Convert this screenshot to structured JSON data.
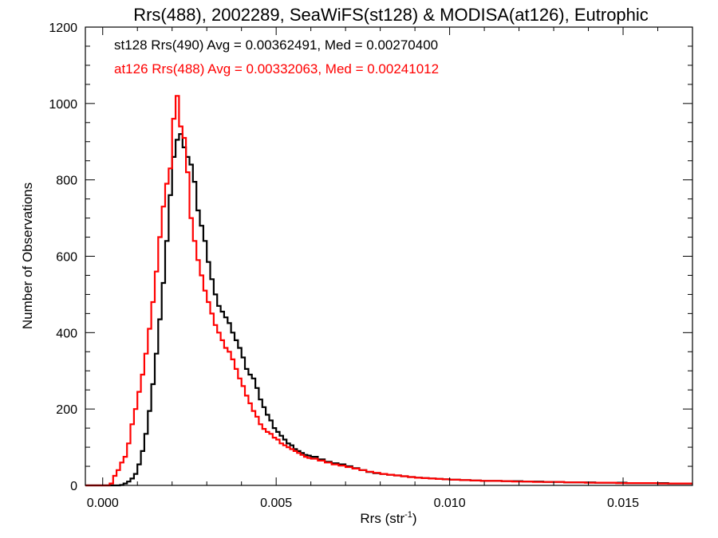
{
  "chart_data": {
    "type": "line",
    "step": true,
    "title": "Rrs(488), 2002289, SeaWiFS(st128) & MODISA(at126), Eutrophic",
    "xlabel": "Rrs (str",
    "xlabel_sup": "-1",
    "xlabel_suffix": ")",
    "ylabel": "Number of Observations",
    "xlim": [
      -0.0005,
      0.017
    ],
    "ylim": [
      0,
      1200
    ],
    "xticks": [
      0.0,
      0.005,
      0.01,
      0.015
    ],
    "xtick_labels": [
      "0.000",
      "0.005",
      "0.010",
      "0.015"
    ],
    "yticks": [
      0,
      200,
      400,
      600,
      800,
      1000,
      1200
    ],
    "ytick_labels": [
      "0",
      "200",
      "400",
      "600",
      "800",
      "1000",
      "1200"
    ],
    "grid": false,
    "legend_position": "top-left",
    "series": [
      {
        "name": "st128 Rrs(490) Avg = 0.00362491, Med = 0.00270400",
        "color": "#000000",
        "points": [
          [
            -0.0005,
            0
          ],
          [
            0.0003,
            0
          ],
          [
            0.0005,
            1
          ],
          [
            0.0006,
            5
          ],
          [
            0.0007,
            10
          ],
          [
            0.0008,
            18
          ],
          [
            0.0009,
            30
          ],
          [
            0.001,
            55
          ],
          [
            0.0011,
            90
          ],
          [
            0.0012,
            135
          ],
          [
            0.0013,
            195
          ],
          [
            0.0014,
            265
          ],
          [
            0.0015,
            345
          ],
          [
            0.0016,
            435
          ],
          [
            0.0017,
            530
          ],
          [
            0.0018,
            640
          ],
          [
            0.0019,
            760
          ],
          [
            0.002,
            860
          ],
          [
            0.0021,
            905
          ],
          [
            0.0022,
            920
          ],
          [
            0.0023,
            885
          ],
          [
            0.0024,
            860
          ],
          [
            0.0025,
            840
          ],
          [
            0.0026,
            795
          ],
          [
            0.0027,
            720
          ],
          [
            0.0028,
            680
          ],
          [
            0.0029,
            640
          ],
          [
            0.003,
            585
          ],
          [
            0.0031,
            540
          ],
          [
            0.0032,
            500
          ],
          [
            0.0033,
            470
          ],
          [
            0.0034,
            455
          ],
          [
            0.0035,
            440
          ],
          [
            0.0036,
            425
          ],
          [
            0.0037,
            400
          ],
          [
            0.0038,
            380
          ],
          [
            0.0039,
            360
          ],
          [
            0.004,
            335
          ],
          [
            0.0041,
            305
          ],
          [
            0.0042,
            290
          ],
          [
            0.0043,
            280
          ],
          [
            0.0044,
            255
          ],
          [
            0.0045,
            225
          ],
          [
            0.0046,
            205
          ],
          [
            0.0047,
            185
          ],
          [
            0.0048,
            170
          ],
          [
            0.0049,
            150
          ],
          [
            0.005,
            140
          ],
          [
            0.0051,
            130
          ],
          [
            0.0052,
            120
          ],
          [
            0.0053,
            110
          ],
          [
            0.0054,
            105
          ],
          [
            0.0055,
            95
          ],
          [
            0.0056,
            90
          ],
          [
            0.0057,
            85
          ],
          [
            0.0058,
            80
          ],
          [
            0.0059,
            78
          ],
          [
            0.006,
            75
          ],
          [
            0.0062,
            68
          ],
          [
            0.0064,
            62
          ],
          [
            0.0066,
            58
          ],
          [
            0.0068,
            55
          ],
          [
            0.007,
            50
          ],
          [
            0.0072,
            45
          ],
          [
            0.0074,
            40
          ],
          [
            0.0076,
            35
          ],
          [
            0.0078,
            32
          ],
          [
            0.008,
            30
          ],
          [
            0.0082,
            28
          ],
          [
            0.0084,
            26
          ],
          [
            0.0086,
            24
          ],
          [
            0.0088,
            22
          ],
          [
            0.009,
            20
          ],
          [
            0.0092,
            19
          ],
          [
            0.0094,
            18
          ],
          [
            0.0096,
            17
          ],
          [
            0.0098,
            16
          ],
          [
            0.01,
            15
          ],
          [
            0.0103,
            14
          ],
          [
            0.0106,
            13
          ],
          [
            0.0109,
            12
          ],
          [
            0.0112,
            12
          ],
          [
            0.0115,
            11
          ],
          [
            0.0118,
            11
          ],
          [
            0.0121,
            10
          ],
          [
            0.0124,
            10
          ],
          [
            0.0127,
            9
          ],
          [
            0.013,
            9
          ],
          [
            0.0133,
            8
          ],
          [
            0.0136,
            8
          ],
          [
            0.0139,
            8
          ],
          [
            0.0142,
            7
          ],
          [
            0.0145,
            7
          ],
          [
            0.0148,
            7
          ],
          [
            0.0151,
            6
          ],
          [
            0.0154,
            6
          ],
          [
            0.0157,
            6
          ],
          [
            0.016,
            6
          ],
          [
            0.0163,
            5
          ],
          [
            0.0166,
            5
          ],
          [
            0.017,
            5
          ]
        ]
      },
      {
        "name": "at126 Rrs(488) Avg = 0.00332063, Med = 0.00241012",
        "color": "#ff0000",
        "points": [
          [
            -0.0005,
            0
          ],
          [
            0.0001,
            0
          ],
          [
            0.0002,
            5
          ],
          [
            0.0003,
            25
          ],
          [
            0.0004,
            40
          ],
          [
            0.0005,
            60
          ],
          [
            0.0006,
            75
          ],
          [
            0.0007,
            110
          ],
          [
            0.0008,
            160
          ],
          [
            0.0009,
            200
          ],
          [
            0.001,
            245
          ],
          [
            0.0011,
            290
          ],
          [
            0.0012,
            345
          ],
          [
            0.0013,
            410
          ],
          [
            0.0014,
            480
          ],
          [
            0.0015,
            560
          ],
          [
            0.0016,
            650
          ],
          [
            0.0017,
            730
          ],
          [
            0.0018,
            790
          ],
          [
            0.0019,
            830
          ],
          [
            0.002,
            960
          ],
          [
            0.0021,
            1020
          ],
          [
            0.0022,
            940
          ],
          [
            0.0023,
            910
          ],
          [
            0.0024,
            820
          ],
          [
            0.0025,
            700
          ],
          [
            0.0026,
            640
          ],
          [
            0.0027,
            590
          ],
          [
            0.0028,
            550
          ],
          [
            0.0029,
            510
          ],
          [
            0.003,
            480
          ],
          [
            0.0031,
            450
          ],
          [
            0.0032,
            420
          ],
          [
            0.0033,
            400
          ],
          [
            0.0034,
            380
          ],
          [
            0.0035,
            360
          ],
          [
            0.0036,
            350
          ],
          [
            0.0037,
            330
          ],
          [
            0.0038,
            305
          ],
          [
            0.0039,
            280
          ],
          [
            0.004,
            260
          ],
          [
            0.0041,
            235
          ],
          [
            0.0042,
            215
          ],
          [
            0.0043,
            195
          ],
          [
            0.0044,
            180
          ],
          [
            0.0045,
            160
          ],
          [
            0.0046,
            148
          ],
          [
            0.0047,
            140
          ],
          [
            0.0048,
            135
          ],
          [
            0.0049,
            125
          ],
          [
            0.005,
            120
          ],
          [
            0.0051,
            110
          ],
          [
            0.0052,
            105
          ],
          [
            0.0053,
            100
          ],
          [
            0.0054,
            95
          ],
          [
            0.0055,
            90
          ],
          [
            0.0056,
            85
          ],
          [
            0.0057,
            80
          ],
          [
            0.0058,
            75
          ],
          [
            0.0059,
            72
          ],
          [
            0.006,
            70
          ],
          [
            0.0062,
            65
          ],
          [
            0.0064,
            60
          ],
          [
            0.0066,
            55
          ],
          [
            0.0068,
            52
          ],
          [
            0.007,
            48
          ],
          [
            0.0072,
            44
          ],
          [
            0.0074,
            40
          ],
          [
            0.0076,
            36
          ],
          [
            0.0078,
            33
          ],
          [
            0.008,
            30
          ],
          [
            0.0082,
            28
          ],
          [
            0.0084,
            26
          ],
          [
            0.0086,
            24
          ],
          [
            0.0088,
            22
          ],
          [
            0.009,
            20
          ],
          [
            0.0092,
            19
          ],
          [
            0.0094,
            18
          ],
          [
            0.0096,
            17
          ],
          [
            0.0098,
            16
          ],
          [
            0.01,
            15
          ],
          [
            0.0103,
            14
          ],
          [
            0.0106,
            13
          ],
          [
            0.0109,
            12
          ],
          [
            0.0112,
            12
          ],
          [
            0.0115,
            11
          ],
          [
            0.0118,
            10
          ],
          [
            0.0121,
            10
          ],
          [
            0.0124,
            9
          ],
          [
            0.0127,
            9
          ],
          [
            0.013,
            9
          ],
          [
            0.0133,
            8
          ],
          [
            0.0136,
            8
          ],
          [
            0.0139,
            7
          ],
          [
            0.0142,
            7
          ],
          [
            0.0145,
            7
          ],
          [
            0.0148,
            6
          ],
          [
            0.0151,
            6
          ],
          [
            0.0154,
            6
          ],
          [
            0.0157,
            6
          ],
          [
            0.016,
            5
          ],
          [
            0.0163,
            5
          ],
          [
            0.0166,
            5
          ],
          [
            0.017,
            5
          ]
        ]
      }
    ]
  }
}
